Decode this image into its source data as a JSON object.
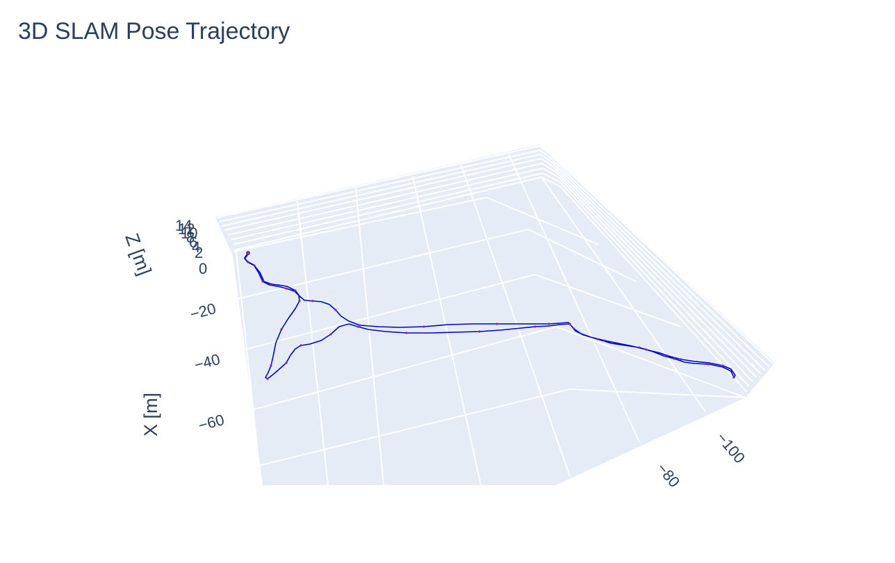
{
  "chart_data": {
    "type": "line3d",
    "title": "3D SLAM Pose Trajectory",
    "xlabel": "X [m]",
    "zlabel": "Z [m]",
    "x_ticks": [
      "−20",
      "−40",
      "−60"
    ],
    "y_ticks": [
      "−100",
      "−80"
    ],
    "z_ticks": [
      "0",
      "2",
      "4",
      "6",
      "8",
      "10",
      "12",
      "14"
    ],
    "series": [
      {
        "line_color": "#0000cc",
        "marker_color": "#7b2ea8",
        "points": [
          [
            357,
            364
          ],
          [
            352,
            371
          ],
          [
            356,
            377
          ],
          [
            366,
            382
          ],
          [
            374,
            392
          ],
          [
            380,
            405
          ],
          [
            391,
            409
          ],
          [
            401,
            410
          ],
          [
            413,
            412
          ],
          [
            425,
            418
          ],
          [
            431,
            426
          ],
          [
            438,
            432
          ],
          [
            450,
            433
          ],
          [
            462,
            434
          ],
          [
            474,
            438
          ],
          [
            483,
            446
          ],
          [
            491,
            455
          ],
          [
            502,
            462
          ],
          [
            518,
            468
          ],
          [
            545,
            470
          ],
          [
            575,
            471
          ],
          [
            610,
            470
          ],
          [
            645,
            467
          ],
          [
            680,
            466
          ],
          [
            715,
            466
          ],
          [
            745,
            466
          ],
          [
            770,
            466
          ],
          [
            790,
            466
          ],
          [
            805,
            465
          ],
          [
            818,
            464
          ],
          [
            826,
            473
          ],
          [
            836,
            480
          ],
          [
            850,
            485
          ],
          [
            870,
            490
          ],
          [
            890,
            494
          ],
          [
            910,
            498
          ],
          [
            930,
            503
          ],
          [
            950,
            508
          ],
          [
            965,
            513
          ],
          [
            980,
            517
          ],
          [
            1000,
            520
          ],
          [
            1020,
            522
          ],
          [
            1040,
            526
          ],
          [
            1052,
            531
          ],
          [
            1058,
            540
          ],
          [
            1056,
            543
          ],
          [
            1052,
            534
          ],
          [
            1040,
            528
          ],
          [
            1020,
            524
          ],
          [
            1000,
            523
          ],
          [
            985,
            521
          ],
          [
            970,
            516
          ],
          [
            955,
            512
          ],
          [
            940,
            506
          ],
          [
            920,
            500
          ],
          [
            900,
            497
          ],
          [
            880,
            494
          ],
          [
            860,
            488
          ],
          [
            840,
            482
          ],
          [
            828,
            476
          ],
          [
            820,
            466
          ],
          [
            805,
            467
          ],
          [
            790,
            469
          ],
          [
            770,
            470
          ],
          [
            750,
            472
          ],
          [
            720,
            475
          ],
          [
            690,
            477
          ],
          [
            655,
            478
          ],
          [
            620,
            479
          ],
          [
            585,
            479
          ],
          [
            555,
            477
          ],
          [
            530,
            474
          ],
          [
            515,
            470
          ],
          [
            502,
            466
          ],
          [
            488,
            470
          ],
          [
            476,
            481
          ],
          [
            462,
            490
          ],
          [
            446,
            495
          ],
          [
            433,
            497
          ],
          [
            425,
            502
          ],
          [
            418,
            511
          ],
          [
            412,
            522
          ],
          [
            402,
            531
          ],
          [
            394,
            538
          ],
          [
            385,
            545
          ],
          [
            382,
            543
          ],
          [
            386,
            536
          ],
          [
            390,
            526
          ],
          [
            393,
            513
          ],
          [
            397,
            493
          ],
          [
            405,
            474
          ],
          [
            415,
            458
          ],
          [
            425,
            444
          ],
          [
            431,
            433
          ],
          [
            430,
            425
          ],
          [
            424,
            419
          ],
          [
            412,
            415
          ],
          [
            400,
            412
          ],
          [
            388,
            410
          ],
          [
            378,
            405
          ],
          [
            372,
            392
          ],
          [
            365,
            381
          ],
          [
            357,
            377
          ],
          [
            352,
            372
          ],
          [
            357,
            366
          ]
        ]
      }
    ]
  }
}
